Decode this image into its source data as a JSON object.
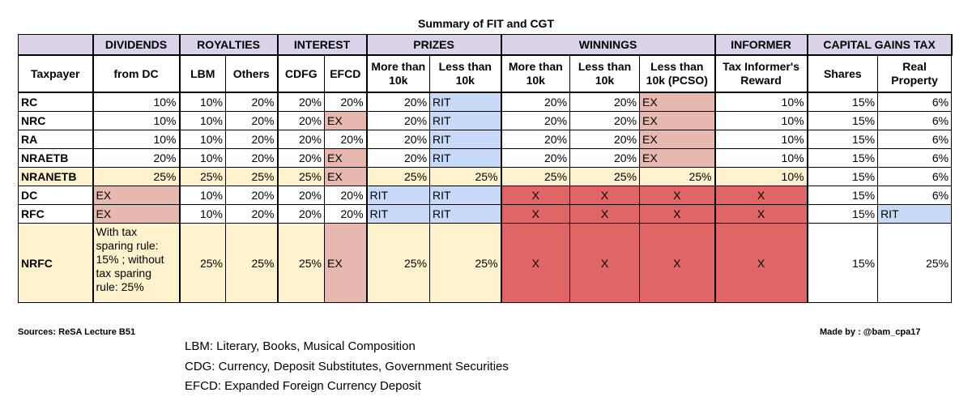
{
  "title": "Summary of FIT and CGT",
  "groups": {
    "dividends": "DIVIDENDS",
    "royalties": "ROYALTIES",
    "interest": "INTEREST",
    "prizes": "PRIZES",
    "winnings": "WINNINGS",
    "informer": "INFORMER",
    "cgt": "CAPITAL GAINS TAX"
  },
  "headers": {
    "taxpayer": "Taxpayer",
    "from_dc": "from DC",
    "lbm": "LBM",
    "others": "Others",
    "cdfg": "CDFG",
    "efcd": "EFCD",
    "prize_more": "More than 10k",
    "prize_less": "Less than 10k",
    "win_more": "More than 10k",
    "win_less": "Less than 10k",
    "win_pcso": "Less than 10k (PCSO)",
    "informer_reward": "Tax Informer's Reward",
    "shares": "Shares",
    "real_property": "Real Property"
  },
  "rows": [
    {
      "taxpayer": "RC",
      "from_dc": "10%",
      "lbm": "10%",
      "others": "20%",
      "cdfg": "20%",
      "efcd": "20%",
      "prize_more": "20%",
      "prize_less": "RIT",
      "win_more": "20%",
      "win_less": "20%",
      "win_pcso": "EX",
      "informer": "10%",
      "shares": "15%",
      "real_property": "6%"
    },
    {
      "taxpayer": "NRC",
      "from_dc": "10%",
      "lbm": "10%",
      "others": "20%",
      "cdfg": "20%",
      "efcd": "EX",
      "prize_more": "20%",
      "prize_less": "RIT",
      "win_more": "20%",
      "win_less": "20%",
      "win_pcso": "EX",
      "informer": "10%",
      "shares": "15%",
      "real_property": "6%"
    },
    {
      "taxpayer": "RA",
      "from_dc": "10%",
      "lbm": "10%",
      "others": "20%",
      "cdfg": "20%",
      "efcd": "20%",
      "prize_more": "20%",
      "prize_less": "RIT",
      "win_more": "20%",
      "win_less": "20%",
      "win_pcso": "EX",
      "informer": "10%",
      "shares": "15%",
      "real_property": "6%"
    },
    {
      "taxpayer": "NRAETB",
      "from_dc": "20%",
      "lbm": "10%",
      "others": "20%",
      "cdfg": "20%",
      "efcd": "EX",
      "prize_more": "20%",
      "prize_less": "RIT",
      "win_more": "20%",
      "win_less": "20%",
      "win_pcso": "EX",
      "informer": "10%",
      "shares": "15%",
      "real_property": "6%"
    },
    {
      "taxpayer": "NRANETB",
      "from_dc": "25%",
      "lbm": "25%",
      "others": "25%",
      "cdfg": "25%",
      "efcd": "EX",
      "prize_more": "25%",
      "prize_less": "25%",
      "win_more": "25%",
      "win_less": "25%",
      "win_pcso": "25%",
      "informer": "10%",
      "shares": "15%",
      "real_property": "6%"
    },
    {
      "taxpayer": "DC",
      "from_dc": "EX",
      "lbm": "10%",
      "others": "20%",
      "cdfg": "20%",
      "efcd": "20%",
      "prize_more": "RIT",
      "prize_less": "RIT",
      "win_more": "X",
      "win_less": "X",
      "win_pcso": "X",
      "informer": "X",
      "shares": "15%",
      "real_property": "6%"
    },
    {
      "taxpayer": "RFC",
      "from_dc": "EX",
      "lbm": "10%",
      "others": "20%",
      "cdfg": "20%",
      "efcd": "20%",
      "prize_more": "RIT",
      "prize_less": "RIT",
      "win_more": "X",
      "win_less": "X",
      "win_pcso": "X",
      "informer": "X",
      "shares": "15%",
      "real_property": "RIT"
    },
    {
      "taxpayer": "NRFC",
      "from_dc": "With tax sparing rule: 15% ; without tax sparing rule: 25%",
      "lbm": "25%",
      "others": "25%",
      "cdfg": "25%",
      "efcd": "EX",
      "prize_more": "25%",
      "prize_less": "25%",
      "win_more": "X",
      "win_less": "X",
      "win_pcso": "X",
      "informer": "X",
      "shares": "15%",
      "real_property": "25%"
    }
  ],
  "sources": "Sources: ReSA Lecture B51",
  "made_by": "Made by : @bam_cpa17",
  "legend": [
    "LBM: Literary, Books, Musical Composition",
    "CDG: Currency, Deposit Substitutes, Government Securities",
    "EFCD: Expanded Foreign Currency Deposit"
  ],
  "colors": {
    "header_purple": "#d9d2e9",
    "rit_blue": "#c9daf8",
    "ex_pink": "#e6b8af",
    "x_red": "#e06666",
    "nra_yellow": "#fff2cc"
  }
}
